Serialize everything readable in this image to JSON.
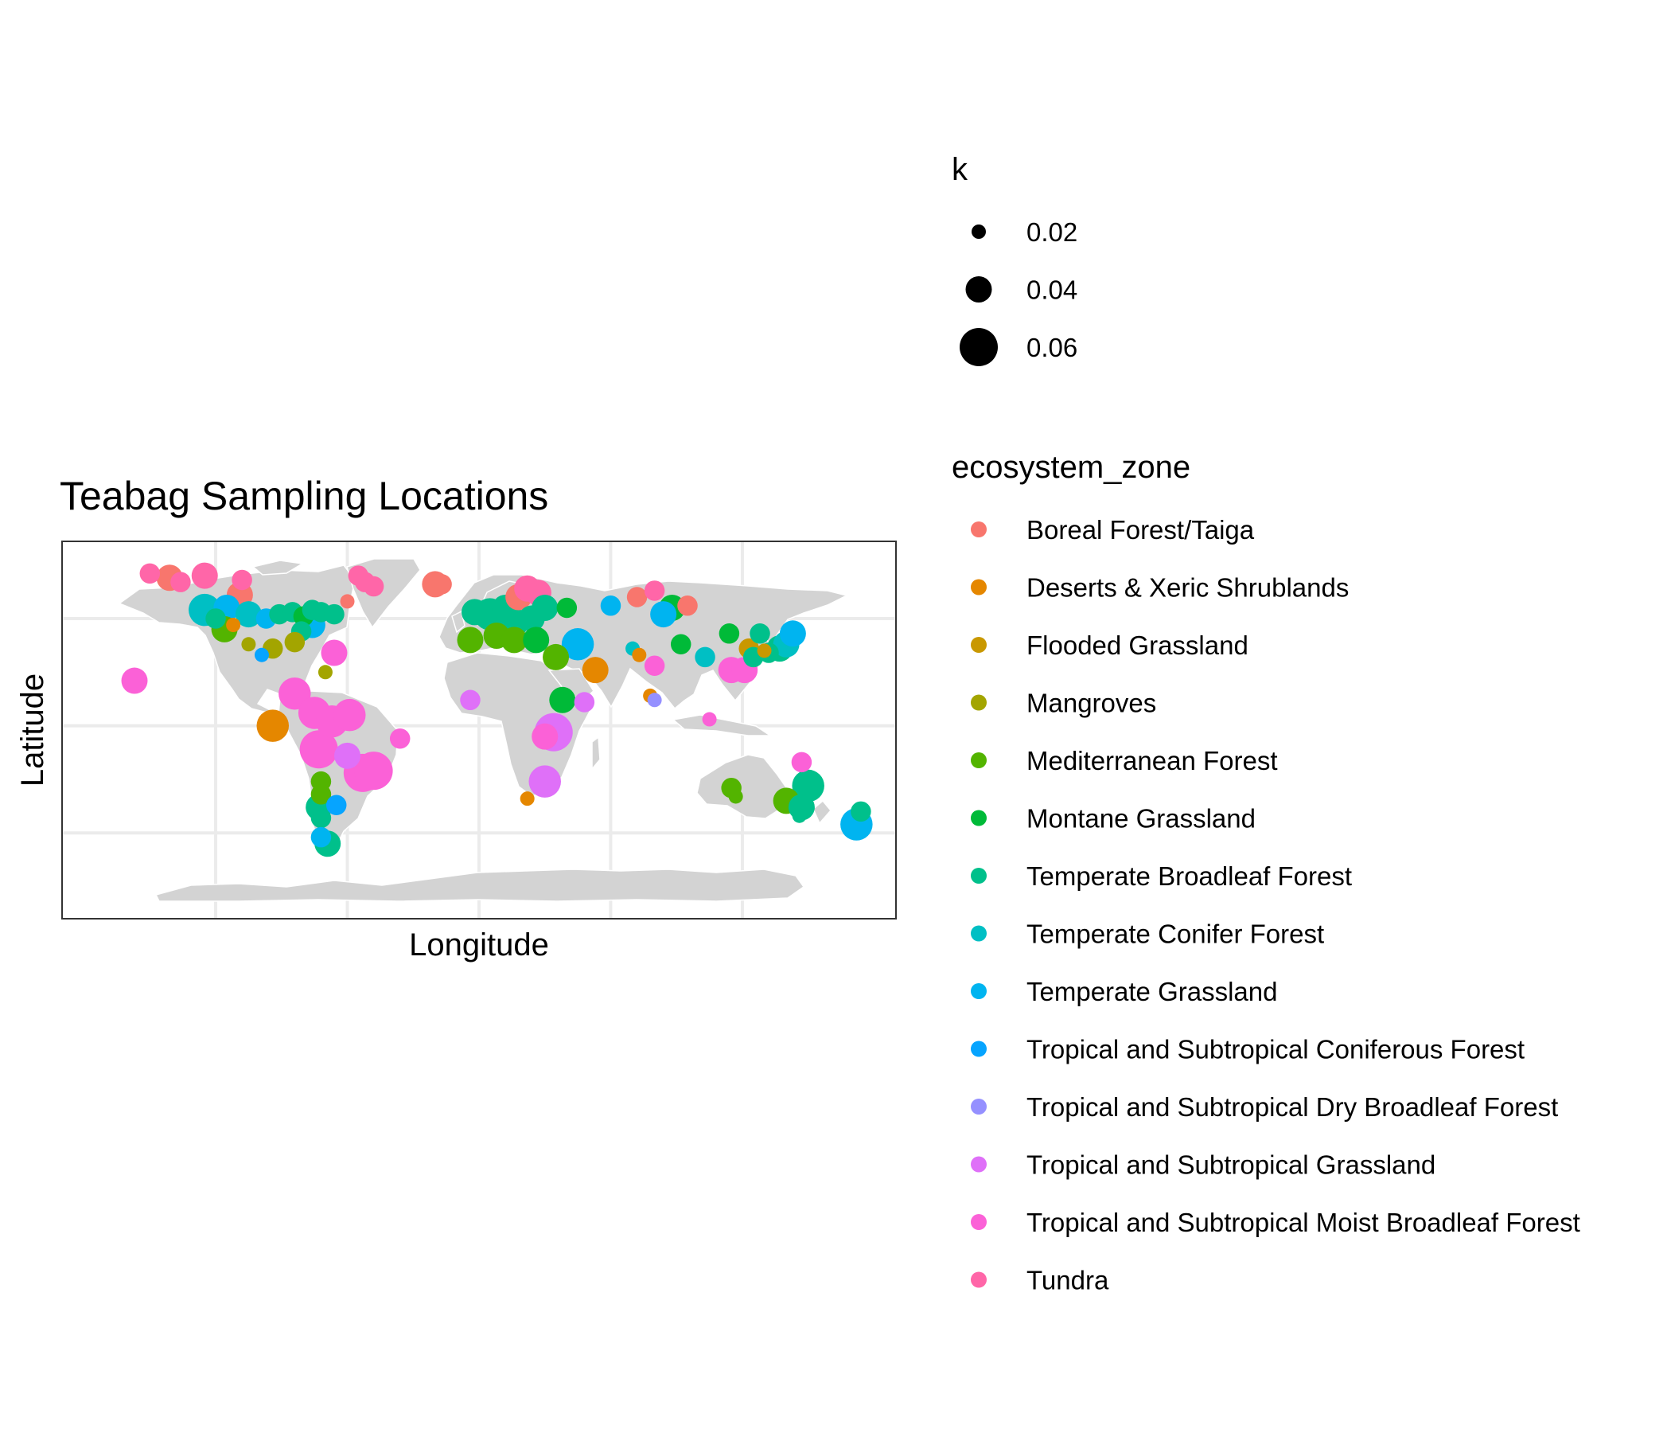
{
  "chart_data": {
    "type": "scatter",
    "title": "Teabag Sampling Locations",
    "xlabel": "Longitude",
    "ylabel": "Latitude",
    "xlim": [
      -190,
      190
    ],
    "ylim": [
      -90,
      86
    ],
    "grid": true,
    "axis_tick_labels": "hidden",
    "background_map": "world land masses, light gray",
    "x_gridlines": [
      -120,
      -60,
      0,
      60,
      120
    ],
    "y_gridlines": [
      -50,
      0,
      50
    ],
    "size_legend": {
      "title": "k",
      "entries": [
        {
          "label": "0.02",
          "value": 0.02
        },
        {
          "label": "0.04",
          "value": 0.04
        },
        {
          "label": "0.06",
          "value": 0.06
        }
      ]
    },
    "color_legend": {
      "title": "ecosystem_zone",
      "entries": [
        {
          "label": "Boreal Forest/Taiga",
          "color": "#F8766D"
        },
        {
          "label": "Deserts & Xeric Shrublands",
          "color": "#E58700"
        },
        {
          "label": "Flooded Grassland",
          "color": "#C99800"
        },
        {
          "label": "Mangroves",
          "color": "#A3A500"
        },
        {
          "label": "Mediterranean Forest",
          "color": "#53B400"
        },
        {
          "label": "Montane Grassland",
          "color": "#00BA38"
        },
        {
          "label": "Temperate Broadleaf Forest",
          "color": "#00C08B"
        },
        {
          "label": "Temperate Conifer Forest",
          "color": "#00BFC4"
        },
        {
          "label": "Temperate Grassland",
          "color": "#00B4F0"
        },
        {
          "label": "Tropical and Subtropical Coniferous Forest",
          "color": "#06A4FF"
        },
        {
          "label": "Tropical and Subtropical Dry Broadleaf Forest",
          "color": "#9590FF"
        },
        {
          "label": "Tropical and Subtropical Grassland",
          "color": "#DF70F8"
        },
        {
          "label": "Tropical and Subtropical Moist Broadleaf Forest",
          "color": "#FB61D7"
        },
        {
          "label": "Tundra",
          "color": "#FF66A8"
        }
      ]
    },
    "points": [
      {
        "lon": -150,
        "lat": 71,
        "k": 0.03,
        "zone": "Tundra"
      },
      {
        "lon": -141,
        "lat": 69,
        "k": 0.04,
        "zone": "Boreal Forest/Taiga"
      },
      {
        "lon": -136,
        "lat": 67,
        "k": 0.03,
        "zone": "Tundra"
      },
      {
        "lon": -125,
        "lat": 70,
        "k": 0.04,
        "zone": "Tundra"
      },
      {
        "lon": -108,
        "lat": 68,
        "k": 0.03,
        "zone": "Tundra"
      },
      {
        "lon": -109,
        "lat": 61,
        "k": 0.04,
        "zone": "Boreal Forest/Taiga"
      },
      {
        "lon": -55,
        "lat": 70,
        "k": 0.03,
        "zone": "Tundra"
      },
      {
        "lon": -52,
        "lat": 67,
        "k": 0.03,
        "zone": "Tundra"
      },
      {
        "lon": -48,
        "lat": 65,
        "k": 0.03,
        "zone": "Tundra"
      },
      {
        "lon": -60,
        "lat": 58,
        "k": 0.02,
        "zone": "Boreal Forest/Taiga"
      },
      {
        "lon": -20,
        "lat": 66,
        "k": 0.04,
        "zone": "Boreal Forest/Taiga"
      },
      {
        "lon": -17,
        "lat": 66,
        "k": 0.03,
        "zone": "Boreal Forest/Taiga"
      },
      {
        "lon": -125,
        "lat": 54,
        "k": 0.05,
        "zone": "Temperate Conifer Forest"
      },
      {
        "lon": -120,
        "lat": 50,
        "k": 0.03,
        "zone": "Temperate Broadleaf Forest"
      },
      {
        "lon": -115,
        "lat": 55,
        "k": 0.04,
        "zone": "Temperate Grassland"
      },
      {
        "lon": -105,
        "lat": 52,
        "k": 0.04,
        "zone": "Temperate Conifer Forest"
      },
      {
        "lon": -97,
        "lat": 50,
        "k": 0.03,
        "zone": "Temperate Grassland"
      },
      {
        "lon": -91,
        "lat": 52,
        "k": 0.03,
        "zone": "Temperate Broadleaf Forest"
      },
      {
        "lon": -85,
        "lat": 53,
        "k": 0.03,
        "zone": "Temperate Broadleaf Forest"
      },
      {
        "lon": -80,
        "lat": 51,
        "k": 0.03,
        "zone": "Montane Grassland"
      },
      {
        "lon": -76,
        "lat": 54,
        "k": 0.03,
        "zone": "Temperate Broadleaf Forest"
      },
      {
        "lon": -72,
        "lat": 53,
        "k": 0.03,
        "zone": "Temperate Broadleaf Forest"
      },
      {
        "lon": -66,
        "lat": 52,
        "k": 0.03,
        "zone": "Temperate Broadleaf Forest"
      },
      {
        "lon": -76,
        "lat": 47,
        "k": 0.04,
        "zone": "Temperate Grassland"
      },
      {
        "lon": -81,
        "lat": 44,
        "k": 0.03,
        "zone": "Temperate Broadleaf Forest"
      },
      {
        "lon": -84,
        "lat": 39,
        "k": 0.03,
        "zone": "Mangroves"
      },
      {
        "lon": -116,
        "lat": 45,
        "k": 0.04,
        "zone": "Mediterranean Forest"
      },
      {
        "lon": -112,
        "lat": 47,
        "k": 0.02,
        "zone": "Deserts & Xeric Shrublands"
      },
      {
        "lon": -105,
        "lat": 38,
        "k": 0.02,
        "zone": "Mangroves"
      },
      {
        "lon": -94,
        "lat": 36,
        "k": 0.03,
        "zone": "Mangroves"
      },
      {
        "lon": -99,
        "lat": 33,
        "k": 0.02,
        "zone": "Tropical and Subtropical Coniferous Forest"
      },
      {
        "lon": -157,
        "lat": 21,
        "k": 0.04,
        "zone": "Tropical and Subtropical Moist Broadleaf Forest"
      },
      {
        "lon": -66,
        "lat": 34,
        "k": 0.04,
        "zone": "Tropical and Subtropical Moist Broadleaf Forest"
      },
      {
        "lon": -70,
        "lat": 25,
        "k": 0.02,
        "zone": "Mangroves"
      },
      {
        "lon": -84,
        "lat": 15,
        "k": 0.05,
        "zone": "Tropical and Subtropical Moist Broadleaf Forest"
      },
      {
        "lon": -75,
        "lat": 6,
        "k": 0.05,
        "zone": "Tropical and Subtropical Moist Broadleaf Forest"
      },
      {
        "lon": -67,
        "lat": 2,
        "k": 0.05,
        "zone": "Tropical and Subtropical Moist Broadleaf Forest"
      },
      {
        "lon": -94,
        "lat": 0,
        "k": 0.05,
        "zone": "Deserts & Xeric Shrublands"
      },
      {
        "lon": -59,
        "lat": 5,
        "k": 0.05,
        "zone": "Tropical and Subtropical Moist Broadleaf Forest"
      },
      {
        "lon": -73,
        "lat": -11,
        "k": 0.06,
        "zone": "Tropical and Subtropical Moist Broadleaf Forest"
      },
      {
        "lon": -60,
        "lat": -14,
        "k": 0.04,
        "zone": "Tropical and Subtropical Grassland"
      },
      {
        "lon": -53,
        "lat": -22,
        "k": 0.06,
        "zone": "Tropical and Subtropical Moist Broadleaf Forest"
      },
      {
        "lon": -48,
        "lat": -21,
        "k": 0.06,
        "zone": "Tropical and Subtropical Moist Broadleaf Forest"
      },
      {
        "lon": -36,
        "lat": -6,
        "k": 0.03,
        "zone": "Tropical and Subtropical Moist Broadleaf Forest"
      },
      {
        "lon": -72,
        "lat": -26,
        "k": 0.03,
        "zone": "Mediterranean Forest"
      },
      {
        "lon": -72,
        "lat": -32,
        "k": 0.03,
        "zone": "Mediterranean Forest"
      },
      {
        "lon": -73,
        "lat": -38,
        "k": 0.04,
        "zone": "Temperate Broadleaf Forest"
      },
      {
        "lon": -72,
        "lat": -43,
        "k": 0.03,
        "zone": "Temperate Broadleaf Forest"
      },
      {
        "lon": -65,
        "lat": -37,
        "k": 0.03,
        "zone": "Tropical and Subtropical Coniferous Forest"
      },
      {
        "lon": -72,
        "lat": -52,
        "k": 0.03,
        "zone": "Temperate Grassland"
      },
      {
        "lon": -69,
        "lat": -55,
        "k": 0.04,
        "zone": "Temperate Broadleaf Forest"
      },
      {
        "lon": -2,
        "lat": 53,
        "k": 0.04,
        "zone": "Temperate Broadleaf Forest"
      },
      {
        "lon": 5,
        "lat": 52,
        "k": 0.05,
        "zone": "Temperate Broadleaf Forest"
      },
      {
        "lon": 12,
        "lat": 55,
        "k": 0.04,
        "zone": "Temperate Broadleaf Forest"
      },
      {
        "lon": 18,
        "lat": 60,
        "k": 0.04,
        "zone": "Boreal Forest/Taiga"
      },
      {
        "lon": 22,
        "lat": 64,
        "k": 0.04,
        "zone": "Tundra"
      },
      {
        "lon": 27,
        "lat": 62,
        "k": 0.04,
        "zone": "Tundra"
      },
      {
        "lon": 15,
        "lat": 48,
        "k": 0.05,
        "zone": "Temperate Broadleaf Forest"
      },
      {
        "lon": 24,
        "lat": 50,
        "k": 0.04,
        "zone": "Temperate Broadleaf Forest"
      },
      {
        "lon": 30,
        "lat": 55,
        "k": 0.04,
        "zone": "Temperate Broadleaf Forest"
      },
      {
        "lon": 40,
        "lat": 55,
        "k": 0.03,
        "zone": "Montane Grassland"
      },
      {
        "lon": -4,
        "lat": 40,
        "k": 0.04,
        "zone": "Mediterranean Forest"
      },
      {
        "lon": 8,
        "lat": 42,
        "k": 0.04,
        "zone": "Mediterranean Forest"
      },
      {
        "lon": 16,
        "lat": 40,
        "k": 0.04,
        "zone": "Mediterranean Forest"
      },
      {
        "lon": 26,
        "lat": 40,
        "k": 0.04,
        "zone": "Montane Grassland"
      },
      {
        "lon": 35,
        "lat": 32,
        "k": 0.04,
        "zone": "Mediterranean Forest"
      },
      {
        "lon": 45,
        "lat": 38,
        "k": 0.05,
        "zone": "Temperate Grassland"
      },
      {
        "lon": 53,
        "lat": 26,
        "k": 0.04,
        "zone": "Deserts & Xeric Shrublands"
      },
      {
        "lon": -4,
        "lat": 12,
        "k": 0.03,
        "zone": "Tropical and Subtropical Grassland"
      },
      {
        "lon": 38,
        "lat": 12,
        "k": 0.04,
        "zone": "Montane Grassland"
      },
      {
        "lon": 48,
        "lat": 11,
        "k": 0.03,
        "zone": "Tropical and Subtropical Grassland"
      },
      {
        "lon": 34,
        "lat": -3,
        "k": 0.06,
        "zone": "Tropical and Subtropical Grassland"
      },
      {
        "lon": 30,
        "lat": -5,
        "k": 0.04,
        "zone": "Tropical and Subtropical Moist Broadleaf Forest"
      },
      {
        "lon": 30,
        "lat": -26,
        "k": 0.05,
        "zone": "Tropical and Subtropical Grassland"
      },
      {
        "lon": 22,
        "lat": -34,
        "k": 0.02,
        "zone": "Deserts & Xeric Shrublands"
      },
      {
        "lon": 60,
        "lat": 56,
        "k": 0.03,
        "zone": "Temperate Grassland"
      },
      {
        "lon": 72,
        "lat": 60,
        "k": 0.03,
        "zone": "Boreal Forest/Taiga"
      },
      {
        "lon": 80,
        "lat": 63,
        "k": 0.03,
        "zone": "Tundra"
      },
      {
        "lon": 88,
        "lat": 55,
        "k": 0.04,
        "zone": "Montane Grassland"
      },
      {
        "lon": 84,
        "lat": 52,
        "k": 0.04,
        "zone": "Temperate Grassland"
      },
      {
        "lon": 95,
        "lat": 56,
        "k": 0.03,
        "zone": "Boreal Forest/Taiga"
      },
      {
        "lon": 70,
        "lat": 36,
        "k": 0.02,
        "zone": "Temperate Conifer Forest"
      },
      {
        "lon": 73,
        "lat": 33,
        "k": 0.02,
        "zone": "Deserts & Xeric Shrublands"
      },
      {
        "lon": 80,
        "lat": 28,
        "k": 0.03,
        "zone": "Tropical and Subtropical Moist Broadleaf Forest"
      },
      {
        "lon": 78,
        "lat": 14,
        "k": 0.02,
        "zone": "Deserts & Xeric Shrublands"
      },
      {
        "lon": 80,
        "lat": 12,
        "k": 0.02,
        "zone": "Tropical and Subtropical Dry Broadleaf Forest"
      },
      {
        "lon": 92,
        "lat": 38,
        "k": 0.03,
        "zone": "Montane Grassland"
      },
      {
        "lon": 103,
        "lat": 32,
        "k": 0.03,
        "zone": "Temperate Conifer Forest"
      },
      {
        "lon": 114,
        "lat": 43,
        "k": 0.03,
        "zone": "Montane Grassland"
      },
      {
        "lon": 123,
        "lat": 36,
        "k": 0.03,
        "zone": "Flooded Grassland"
      },
      {
        "lon": 130,
        "lat": 35,
        "k": 0.02,
        "zone": "Flooded Grassland"
      },
      {
        "lon": 115,
        "lat": 26,
        "k": 0.04,
        "zone": "Tropical and Subtropical Moist Broadleaf Forest"
      },
      {
        "lon": 121,
        "lat": 26,
        "k": 0.04,
        "zone": "Tropical and Subtropical Moist Broadleaf Forest"
      },
      {
        "lon": 125,
        "lat": 32,
        "k": 0.03,
        "zone": "Temperate Broadleaf Forest"
      },
      {
        "lon": 132,
        "lat": 34,
        "k": 0.03,
        "zone": "Temperate Broadleaf Forest"
      },
      {
        "lon": 137,
        "lat": 36,
        "k": 0.04,
        "zone": "Temperate Broadleaf Forest"
      },
      {
        "lon": 140,
        "lat": 38,
        "k": 0.04,
        "zone": "Temperate Conifer Forest"
      },
      {
        "lon": 143,
        "lat": 43,
        "k": 0.04,
        "zone": "Temperate Grassland"
      },
      {
        "lon": 128,
        "lat": 43,
        "k": 0.03,
        "zone": "Temperate Broadleaf Forest"
      },
      {
        "lon": 105,
        "lat": 3,
        "k": 0.02,
        "zone": "Tropical and Subtropical Moist Broadleaf Forest"
      },
      {
        "lon": 147,
        "lat": -17,
        "k": 0.03,
        "zone": "Tropical and Subtropical Moist Broadleaf Forest"
      },
      {
        "lon": 115,
        "lat": -29,
        "k": 0.03,
        "zone": "Mediterranean Forest"
      },
      {
        "lon": 117,
        "lat": -33,
        "k": 0.02,
        "zone": "Mediterranean Forest"
      },
      {
        "lon": 140,
        "lat": -35,
        "k": 0.04,
        "zone": "Mediterranean Forest"
      },
      {
        "lon": 150,
        "lat": -28,
        "k": 0.05,
        "zone": "Temperate Broadleaf Forest"
      },
      {
        "lon": 147,
        "lat": -38,
        "k": 0.04,
        "zone": "Temperate Broadleaf Forest"
      },
      {
        "lon": 146,
        "lat": -42,
        "k": 0.02,
        "zone": "Temperate Broadleaf Forest"
      },
      {
        "lon": 172,
        "lat": -46,
        "k": 0.05,
        "zone": "Temperate Grassland"
      },
      {
        "lon": 174,
        "lat": -40,
        "k": 0.03,
        "zone": "Temperate Broadleaf Forest"
      }
    ]
  }
}
